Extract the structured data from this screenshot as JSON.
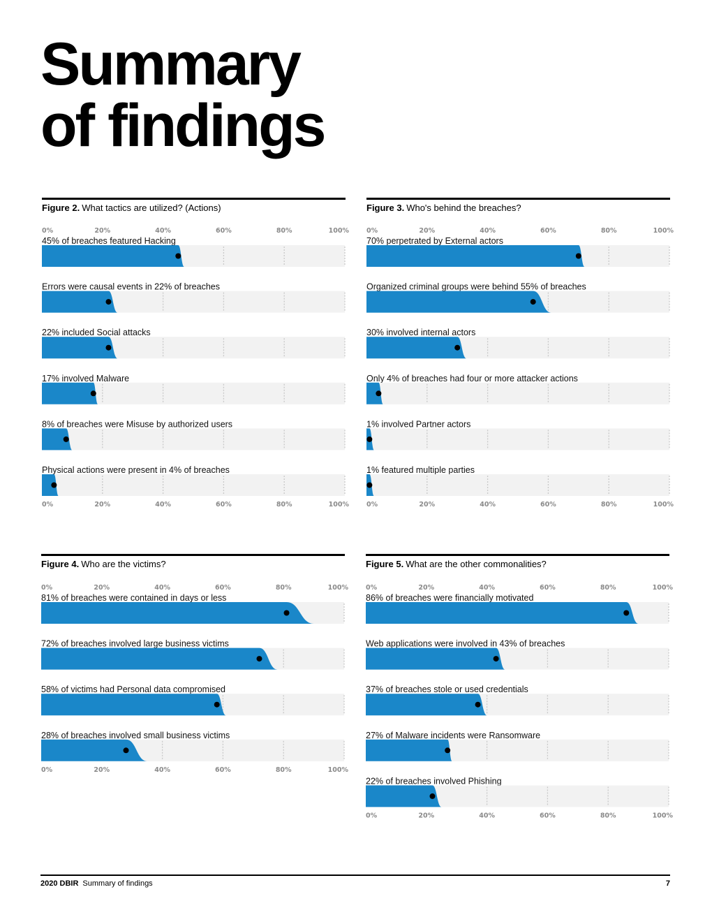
{
  "title_line1": "Summary",
  "title_line2": "of findings",
  "footer": {
    "report": "2020 DBIR",
    "section": "Summary of findings",
    "page": "7"
  },
  "colors": {
    "bar": "#1a87c9",
    "track": "#f2f2f2",
    "dot": "#000000",
    "grid": "#c8c8c8"
  },
  "figures": [
    {
      "number": "Figure 2.",
      "caption": "What tactics are utilized? (Actions)"
    },
    {
      "number": "Figure 3.",
      "caption": "Who's behind the breaches?"
    },
    {
      "number": "Figure 4.",
      "caption": "Who are the victims?"
    },
    {
      "number": "Figure 5.",
      "caption": "What are the other commonalities?"
    }
  ],
  "chart_data": [
    {
      "type": "bar",
      "title": "Figure 2. What tactics are utilized? (Actions)",
      "ticks": [
        "0%",
        "20%",
        "40%",
        "60%",
        "80%",
        "100%"
      ],
      "xlim": [
        0,
        100
      ],
      "bottom_axis": true,
      "categories": [
        "45% of breaches featured Hacking",
        "Errors were causal events in 22% of breaches",
        "22% included Social attacks",
        "17% involved Malware",
        "8% of breaches were Misuse by authorized users",
        "Physical actions were present in 4% of breaches"
      ],
      "values": [
        45,
        22,
        22,
        17,
        8,
        4
      ],
      "upper": [
        47,
        25,
        25,
        17,
        10,
        5
      ]
    },
    {
      "type": "bar",
      "title": "Figure 3. Who's behind the breaches?",
      "ticks": [
        "0%",
        "20%",
        "40%",
        "60%",
        "80%",
        "100%"
      ],
      "xlim": [
        0,
        100
      ],
      "bottom_axis": true,
      "categories": [
        "70% perpetrated by External actors",
        "Organized criminal groups were behind 55% of breaches",
        "30% involved internal actors",
        "Only 4% of breaches had four or more attacker actions",
        "1% involved Partner actors",
        "1% featured multiple parties"
      ],
      "values": [
        70,
        55,
        30,
        4,
        1,
        1
      ],
      "upper": [
        72,
        61,
        33,
        5,
        2,
        2
      ]
    },
    {
      "type": "bar",
      "title": "Figure 4. Who are the victims?",
      "ticks": [
        "0%",
        "20%",
        "40%",
        "60%",
        "80%",
        "100%"
      ],
      "xlim": [
        0,
        100
      ],
      "bottom_axis": true,
      "categories": [
        "81% of breaches were contained in days or less",
        "72% of breaches involved large business victims",
        "58% of victims had Personal data compromised",
        "28% of breaches involved small business victims"
      ],
      "values": [
        81,
        72,
        58,
        28
      ],
      "upper": [
        90,
        78,
        61,
        35
      ]
    },
    {
      "type": "bar",
      "title": "Figure 5. What are the other commonalities?",
      "ticks": [
        "0%",
        "20%",
        "40%",
        "60%",
        "80%",
        "100%"
      ],
      "xlim": [
        0,
        100
      ],
      "bottom_axis": true,
      "categories": [
        "86% of breaches were financially motivated",
        "Web applications were involved in 43% of breaches",
        "37% of breaches stole or used credentials",
        "27% of Malware incidents were Ransomware",
        "22% of breaches involved Phishing"
      ],
      "values": [
        86,
        43,
        37,
        27,
        22
      ],
      "upper": [
        90,
        46,
        40,
        28,
        25
      ]
    }
  ]
}
